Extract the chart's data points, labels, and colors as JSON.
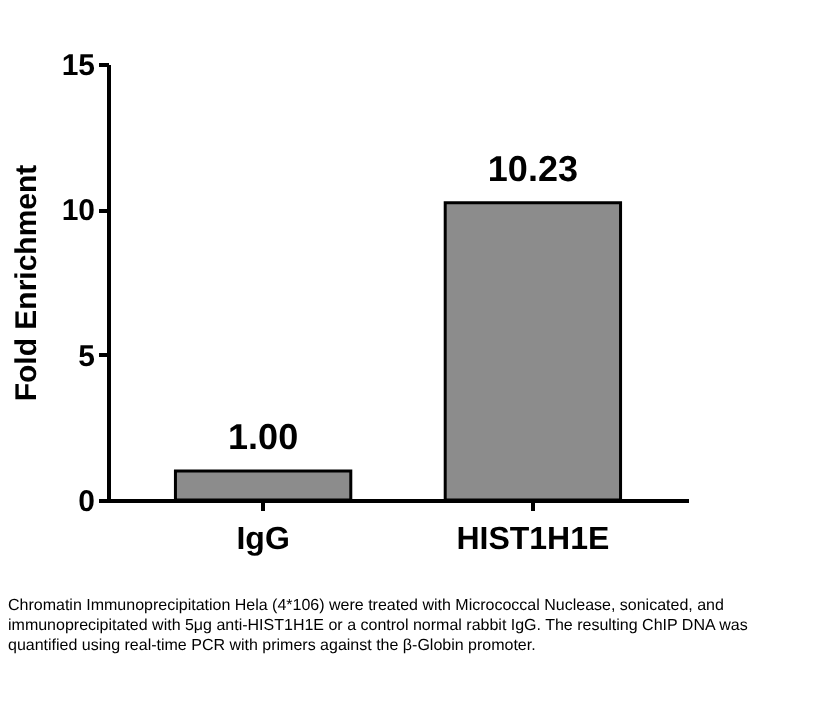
{
  "chart_data": {
    "type": "bar",
    "ylabel": "Fold Enrichment",
    "categories": [
      "IgG",
      "HIST1H1E"
    ],
    "values": [
      1.0,
      10.23
    ],
    "color": "#8c8c8c",
    "value_labels": [
      "1.00",
      "10.23"
    ],
    "ylim": [
      0,
      15
    ],
    "yticks": [
      0,
      5,
      10,
      15
    ],
    "grid": false,
    "annotations": [
      "Chromatin Immunoprecipitation Hela (4*106) were treated with Micrococcal Nuclease, sonicated, and immunoprecipitated with 5μg anti-HIST1H1E or a control normal rabbit IgG. The resulting ChIP DNA was quantified using real-time PCR with primers against the β-Globin promoter."
    ]
  }
}
